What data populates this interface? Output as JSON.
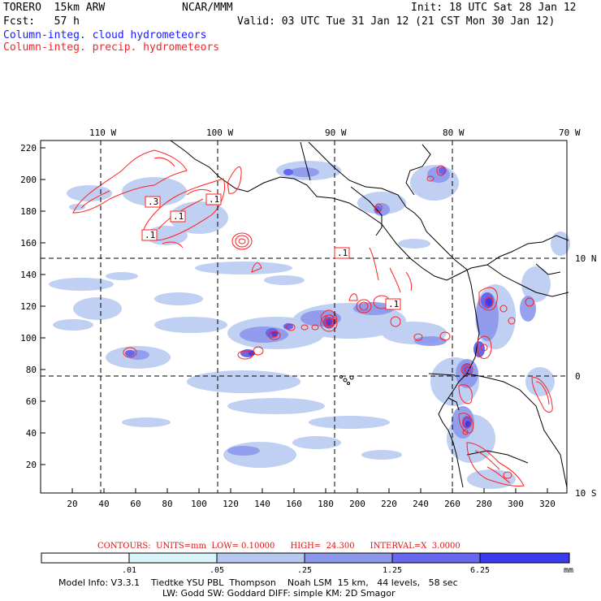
{
  "header": {
    "model": "TORERO  15km ARW",
    "org": "NCAR/MMM",
    "init": "Init: 18 UTC Sat 28 Jan 12",
    "fcst": "Fcst:   57 h",
    "valid": "Valid: 03 UTC Tue 31 Jan 12 (21 CST Mon 30 Jan 12)",
    "field1": "Column-integ. cloud hydrometeors",
    "field2": "Column-integ. precip. hydrometeors"
  },
  "axes": {
    "top_lon": [
      "110 W",
      "100 W",
      "90 W",
      "80 W",
      "70 W"
    ],
    "right_lat": [
      "10 N",
      "0",
      "10 S"
    ],
    "left_y": [
      "220",
      "200",
      "180",
      "160",
      "140",
      "120",
      "100",
      "80",
      "60",
      "40",
      "20"
    ],
    "bottom_x": [
      "20",
      "40",
      "60",
      "80",
      "100",
      "120",
      "140",
      "160",
      "180",
      "200",
      "220",
      "240",
      "260",
      "280",
      "300",
      "320"
    ]
  },
  "contour_labels": [
    ".3",
    ".1",
    ".1",
    ".1",
    ".1",
    ".1"
  ],
  "contour_info": {
    "contours": "CONTOURS:",
    "units": "UNITS=mm",
    "low": "LOW= 0.10000",
    "high": "HIGH=  24.300",
    "interval": "INTERVAL=X  3.0000"
  },
  "colorbar": {
    "labels": [
      ".01",
      ".05",
      ".25",
      "1.25",
      "6.25"
    ],
    "unit": "mm",
    "colors": [
      "#ffffff",
      "#d8f4f8",
      "#b6c8f0",
      "#8c98ec",
      "#6666ee",
      "#3a3aee",
      "#1414e8"
    ]
  },
  "footer": {
    "line1": "Model Info: V3.3.1    Tiedtke YSU PBL  Thompson    Noah LSM  15 km,   44 levels,   58 sec",
    "line2": "LW: Godd SW: Goddard DIFF: simple KM: 2D Smagor"
  },
  "colors": {
    "cloud": "#1a1aff",
    "precip": "#ff2020"
  }
}
